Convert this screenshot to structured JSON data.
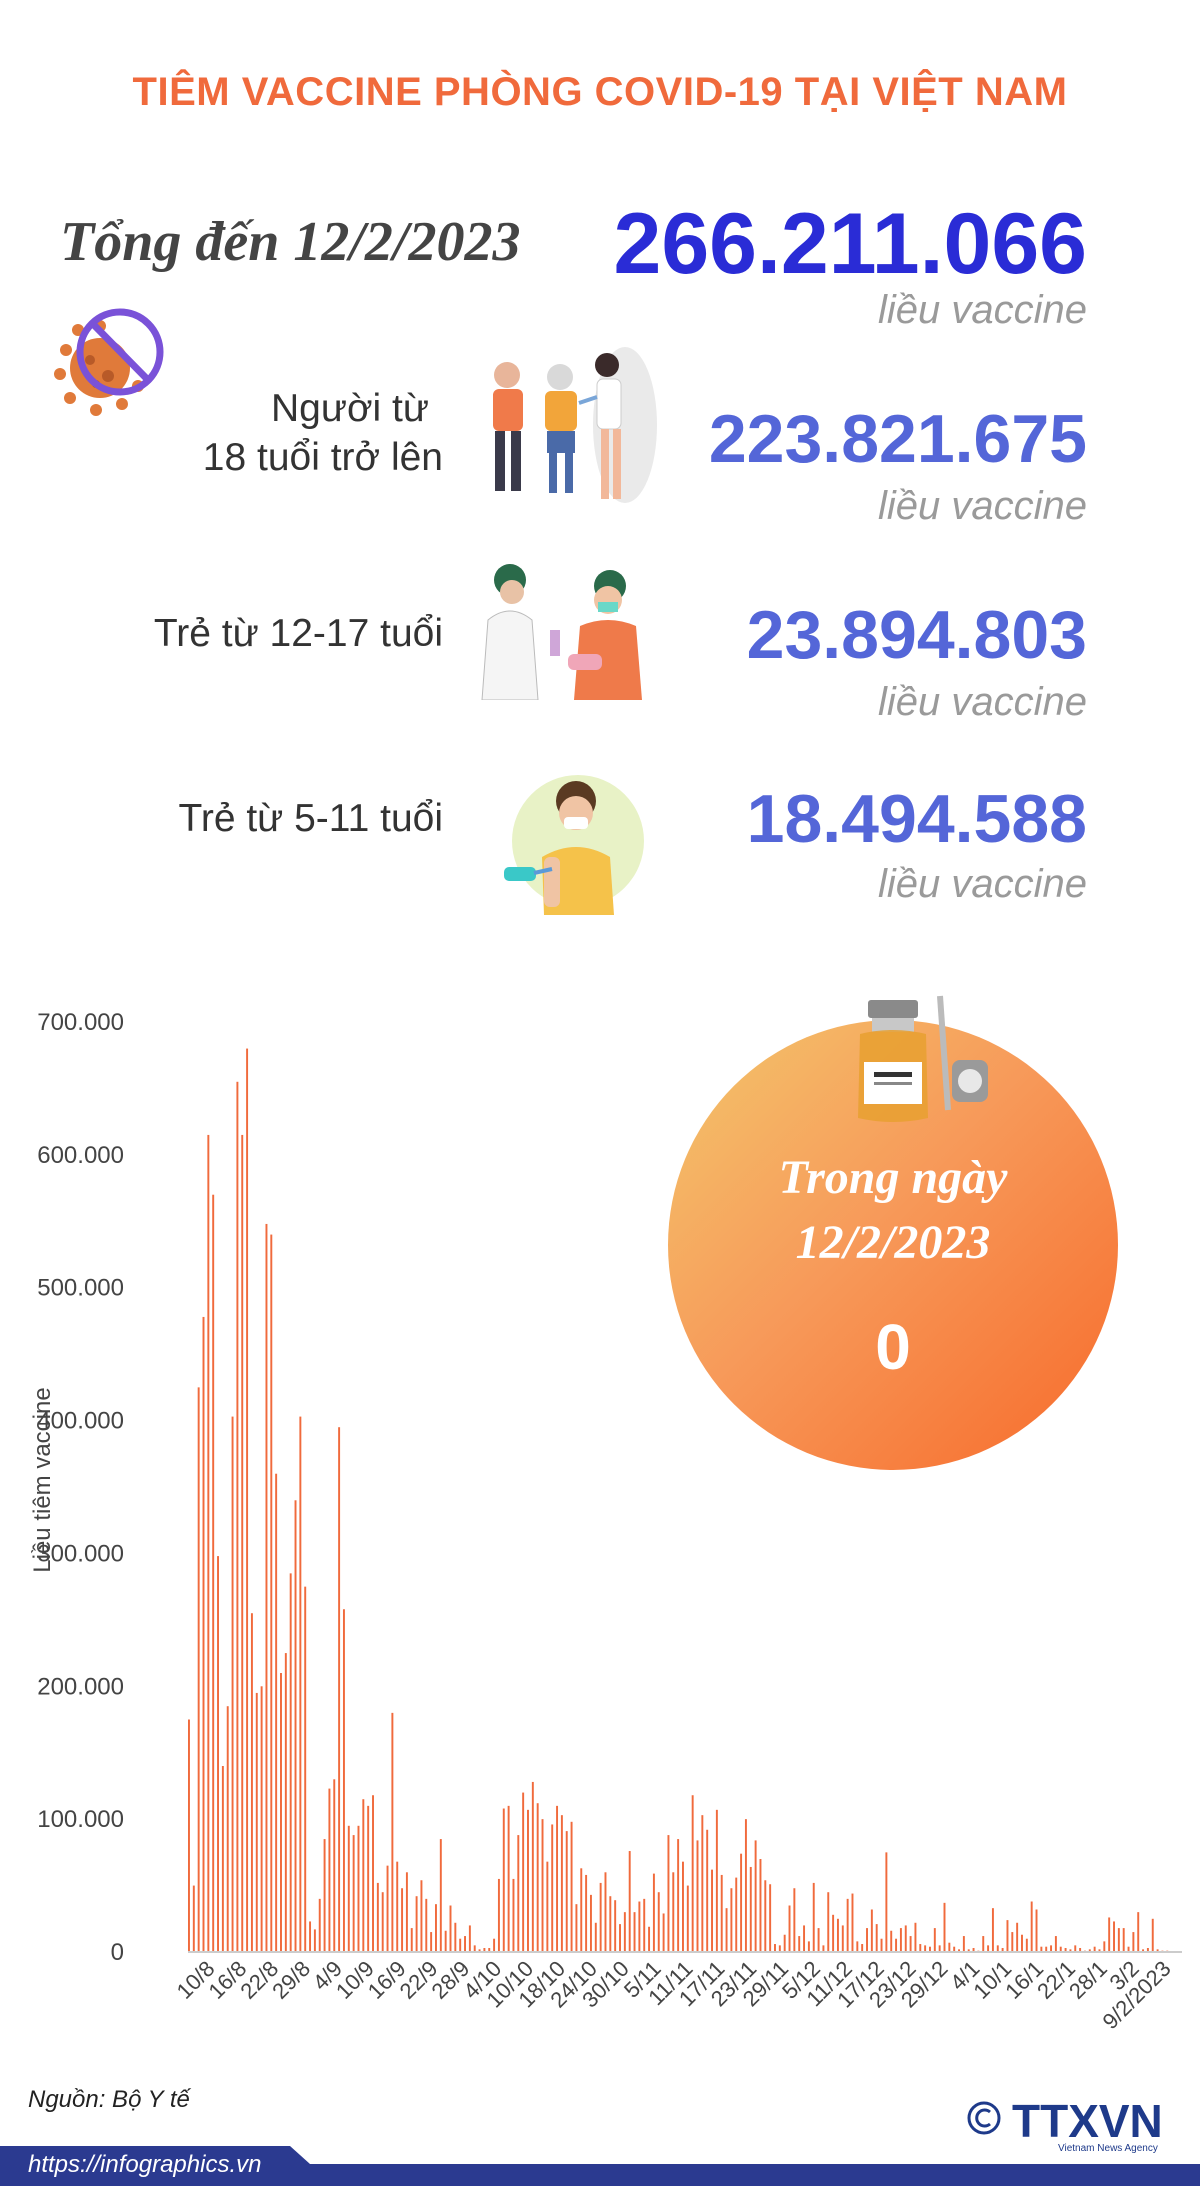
{
  "title": "TIÊM VACCINE PHÒNG COVID-19 TẠI VIỆT NAM",
  "total": {
    "label": "Tổng đến 12/2/2023",
    "value": "266.211.066",
    "unit": "liều vaccine"
  },
  "groups": [
    {
      "label_line1": "Người từ",
      "label_line2": "18 tuổi trở lên",
      "value": "223.821.675",
      "unit": "liều vaccine"
    },
    {
      "label_line1": "Trẻ từ 12-17 tuổi",
      "value": "23.894.803",
      "unit": "liều vaccine"
    },
    {
      "label_line1": "Trẻ từ 5-11 tuổi",
      "value": "18.494.588",
      "unit": "liều vaccine"
    }
  ],
  "today": {
    "line1": "Trong ngày",
    "line2": "12/2/2023",
    "value": "0"
  },
  "source": "Nguồn: Bộ Y tế",
  "footer": {
    "url": "https://infographics.vn",
    "brand": "TTXVN",
    "brand_sub": "Vietnam News Agency"
  },
  "colors": {
    "title": "#f06a3c",
    "total": "#2a2cd6",
    "groups": "#5466d8",
    "bars": "#f06a3c",
    "footer": "#2b3a90"
  },
  "icons": [
    "virus-crossed-icon",
    "elderly-vaccination-icon",
    "teen-vaccination-icon",
    "child-vaccination-icon",
    "vaccine-vial-icon",
    "copyright-icon"
  ],
  "chart_data": {
    "type": "bar",
    "ylabel": "Liều tiêm vaccine",
    "ylim": [
      0,
      700000
    ],
    "yticks": [
      "0",
      "100.000",
      "200.000",
      "300.000",
      "400.000",
      "500.000",
      "600.000",
      "700.000"
    ],
    "xtick_labels": [
      "10/8",
      "16/8",
      "22/8",
      "29/8",
      "4/9",
      "10/9",
      "16/9",
      "22/9",
      "28/9",
      "4/10",
      "10/10",
      "18/10",
      "24/10",
      "30/10",
      "5/11",
      "11/11",
      "17/11",
      "23/11",
      "29/11",
      "5/12",
      "11/12",
      "17/12",
      "23/12",
      "29/12",
      "4/1",
      "10/1",
      "16/1",
      "22/1",
      "28/1",
      "3/2",
      "9/2/2023"
    ],
    "values": [
      175000,
      50000,
      425000,
      478000,
      615000,
      570000,
      298000,
      140000,
      185000,
      403000,
      655000,
      615000,
      680000,
      255000,
      195000,
      200000,
      548000,
      540000,
      360000,
      210000,
      225000,
      285000,
      340000,
      403000,
      275000,
      23000,
      17000,
      40000,
      85000,
      123000,
      130000,
      395000,
      258000,
      95000,
      88000,
      95000,
      115000,
      110000,
      118000,
      52000,
      45000,
      65000,
      180000,
      68000,
      48000,
      60000,
      18000,
      42000,
      54000,
      40000,
      15000,
      36000,
      85000,
      16000,
      35000,
      22000,
      10000,
      12000,
      20000,
      5000,
      2000,
      3000,
      3000,
      10000,
      55000,
      108000,
      110000,
      55000,
      88000,
      120000,
      107000,
      128000,
      112000,
      100000,
      68000,
      96000,
      110000,
      103000,
      91000,
      98000,
      36000,
      63000,
      58000,
      43000,
      22000,
      52000,
      60000,
      42000,
      39000,
      21000,
      30000,
      76000,
      30000,
      38000,
      40000,
      19000,
      59000,
      45000,
      29000,
      88000,
      60000,
      85000,
      68000,
      50000,
      118000,
      84000,
      103000,
      92000,
      62000,
      107000,
      58000,
      33000,
      48000,
      56000,
      74000,
      100000,
      64000,
      84000,
      70000,
      54000,
      51000,
      6000,
      5000,
      13000,
      35000,
      48000,
      12000,
      20000,
      8000,
      52000,
      18000,
      5000,
      45000,
      28000,
      25000,
      20000,
      40000,
      44000,
      8000,
      6000,
      18000,
      32000,
      21000,
      10000,
      75000,
      16000,
      10000,
      18000,
      20000,
      12000,
      22000,
      6000,
      5000,
      4000,
      18000,
      5000,
      37000,
      7000,
      4000,
      2000,
      12000,
      2000,
      3000,
      1000,
      12000,
      5000,
      33000,
      5000,
      3000,
      24000,
      15000,
      22000,
      13000,
      10000,
      38000,
      32000,
      4000,
      4000,
      5000,
      12000,
      4000,
      3000,
      2000,
      5000,
      3000,
      1000,
      2000,
      4000,
      2000,
      8000,
      26000,
      23000,
      18000,
      18000,
      4000,
      15000,
      30000,
      2000,
      3000,
      25000,
      2000,
      1000,
      1000,
      0
    ]
  }
}
